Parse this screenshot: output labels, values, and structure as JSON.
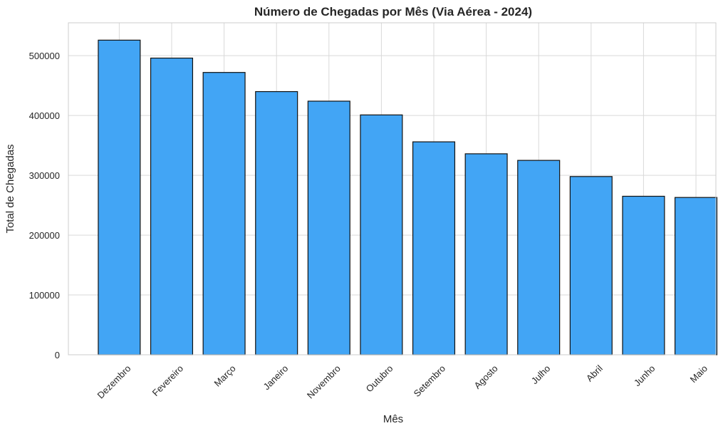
{
  "chart_data": {
    "type": "bar",
    "title": "Número de Chegadas por Mês (Via Aérea - 2024)",
    "xlabel": "Mês",
    "ylabel": "Total de Chegadas",
    "categories": [
      "Dezembro",
      "Fevereiro",
      "Março",
      "Janeiro",
      "Novembro",
      "Outubro",
      "Setembro",
      "Agosto",
      "Julho",
      "Abril",
      "Junho",
      "Maio"
    ],
    "values": [
      526000,
      496000,
      472000,
      440000,
      424000,
      401000,
      356000,
      336000,
      325000,
      298000,
      265000,
      263000
    ],
    "ylim": [
      0,
      555000
    ],
    "yticks": [
      0,
      100000,
      200000,
      300000,
      400000,
      500000
    ],
    "ytick_labels": [
      "0",
      "100000",
      "200000",
      "300000",
      "400000",
      "500000"
    ],
    "grid": true,
    "bar_color": "#42a5f5",
    "bar_edge_color": "#111111"
  }
}
